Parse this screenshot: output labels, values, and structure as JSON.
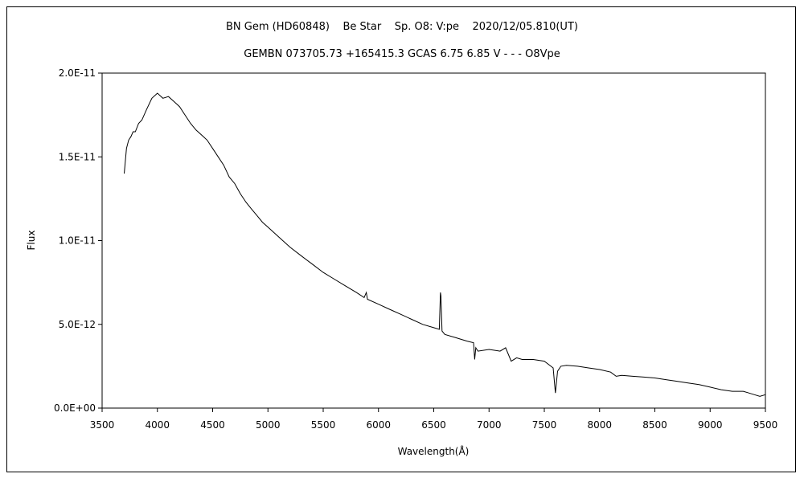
{
  "chart_data": {
    "type": "line",
    "title": "BN Gem (HD60848)    Be Star    Sp. O8: V:pe    2020/12/05.810(UT)",
    "subtitle": "GEMBN 073705.73 +165415.3 GCAS 6.75 6.85 V - - - O8Vpe",
    "xlabel": "Wavelength(Å)",
    "ylabel": "Flux",
    "xlim": [
      3500,
      9500
    ],
    "ylim": [
      0,
      2e-11
    ],
    "x_ticks": [
      "3500",
      "4000",
      "4500",
      "5000",
      "5500",
      "6000",
      "6500",
      "7000",
      "7500",
      "8000",
      "8500",
      "9000",
      "9500"
    ],
    "y_ticks": [
      "0.0E+00",
      "5.0E-12",
      "1.0E-11",
      "1.5E-11",
      "2.0E-11"
    ],
    "grid": false,
    "series_color": "#000000",
    "series": [
      {
        "x": [
          3700,
          3720,
          3740,
          3760,
          3780,
          3800,
          3830,
          3860,
          3900,
          3950,
          4000,
          4050,
          4100,
          4150,
          4200,
          4250,
          4300,
          4350,
          4400,
          4450,
          4500,
          4550,
          4600,
          4650,
          4700,
          4750,
          4800,
          4850,
          4900,
          4950,
          5000,
          5100,
          5200,
          5300,
          5400,
          5500,
          5600,
          5700,
          5800,
          5870,
          5890,
          5900,
          6000,
          6100,
          6200,
          6300,
          6400,
          6500,
          6550,
          6560,
          6565,
          6575,
          6600,
          6700,
          6800,
          6860,
          6870,
          6880,
          6900,
          7000,
          7100,
          7150,
          7200,
          7250,
          7300,
          7400,
          7500,
          7580,
          7600,
          7620,
          7650,
          7700,
          7800,
          7900,
          8000,
          8100,
          8150,
          8200,
          8300,
          8400,
          8500,
          8600,
          8700,
          8800,
          8900,
          9000,
          9100,
          9200,
          9300,
          9350,
          9400,
          9450,
          9500
        ],
        "y": [
          1.4e-11,
          1.55e-11,
          1.6e-11,
          1.62e-11,
          1.65e-11,
          1.65e-11,
          1.7e-11,
          1.72e-11,
          1.78e-11,
          1.85e-11,
          1.88e-11,
          1.85e-11,
          1.86e-11,
          1.83e-11,
          1.8e-11,
          1.75e-11,
          1.7e-11,
          1.66e-11,
          1.63e-11,
          1.6e-11,
          1.55e-11,
          1.5e-11,
          1.45e-11,
          1.38e-11,
          1.34e-11,
          1.28e-11,
          1.23e-11,
          1.19e-11,
          1.15e-11,
          1.11e-11,
          1.08e-11,
          1.02e-11,
          9.6e-12,
          9.1e-12,
          8.6e-12,
          8.1e-12,
          7.7e-12,
          7.3e-12,
          6.9e-12,
          6.6e-12,
          6.9e-12,
          6.5e-12,
          6.2e-12,
          5.9e-12,
          5.6e-12,
          5.3e-12,
          5e-12,
          4.8e-12,
          4.7e-12,
          6.9e-12,
          6.7e-12,
          4.6e-12,
          4.4e-12,
          4.2e-12,
          4e-12,
          3.9e-12,
          2.9e-12,
          3.6e-12,
          3.4e-12,
          3.5e-12,
          3.4e-12,
          3.6e-12,
          2.8e-12,
          3e-12,
          2.9e-12,
          2.9e-12,
          2.8e-12,
          2.4e-12,
          9e-13,
          2.2e-12,
          2.5e-12,
          2.55e-12,
          2.5e-12,
          2.4e-12,
          2.3e-12,
          2.15e-12,
          1.9e-12,
          1.95e-12,
          1.9e-12,
          1.85e-12,
          1.8e-12,
          1.7e-12,
          1.6e-12,
          1.5e-12,
          1.4e-12,
          1.25e-12,
          1.1e-12,
          1e-12,
          1e-12,
          9e-13,
          8e-13,
          7e-13,
          8e-13
        ]
      }
    ]
  }
}
